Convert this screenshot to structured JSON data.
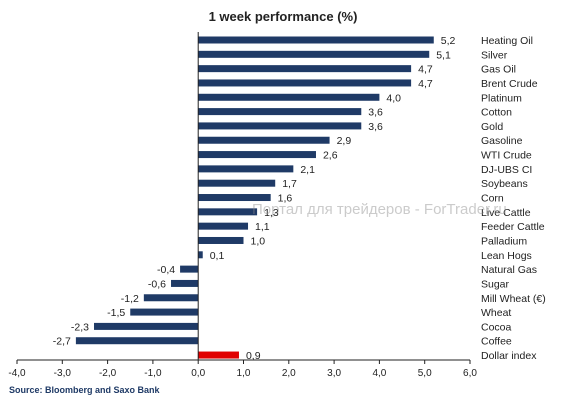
{
  "chart_data": {
    "type": "bar",
    "orientation": "horizontal",
    "title": "1 week performance (%)",
    "source": "Source: Bloomberg and Saxo Bank",
    "watermark": "Портал для трейдеров - ForTrader.ru",
    "categories": [
      "Heating Oil",
      "Silver",
      "Gas Oil",
      "Brent Crude",
      "Platinum",
      "Cotton",
      "Gold",
      "Gasoline",
      "WTI Crude",
      "DJ-UBS CI",
      "Soybeans",
      "Corn",
      "Live Cattle",
      "Feeder Cattle",
      "Palladium",
      "Lean Hogs",
      "Natural Gas",
      "Sugar",
      "Mill Wheat (€)",
      "Wheat",
      "Cocoa",
      "Coffee",
      "Dollar index"
    ],
    "values": [
      5.2,
      5.1,
      4.7,
      4.7,
      4.0,
      3.6,
      3.6,
      2.9,
      2.6,
      2.1,
      1.7,
      1.6,
      1.3,
      1.1,
      1.0,
      0.1,
      -0.4,
      -0.6,
      -1.2,
      -1.5,
      -2.3,
      -2.7,
      0.9
    ],
    "value_labels": [
      "5,2",
      "5,1",
      "4,7",
      "4,7",
      "4,0",
      "3,6",
      "3,6",
      "2,9",
      "2,6",
      "2,1",
      "1,7",
      "1,6",
      "1,3",
      "1,1",
      "1,0",
      "0,1",
      "-0,4",
      "-0,6",
      "-1,2",
      "-1,5",
      "-2,3",
      "-2,7",
      "0,9"
    ],
    "xlim": [
      -4.0,
      6.0
    ],
    "xticks": [
      -4.0,
      -3.0,
      -2.0,
      -1.0,
      0.0,
      1.0,
      2.0,
      3.0,
      4.0,
      5.0,
      6.0
    ],
    "xtick_labels": [
      "-4,0",
      "-3,0",
      "-2,0",
      "-1,0",
      "0,0",
      "1,0",
      "2,0",
      "3,0",
      "4,0",
      "5,0",
      "6,0"
    ],
    "colors": {
      "bar": "#1f3a66",
      "highlight": "#e00000",
      "axis": "#222222"
    },
    "highlight_category": "Dollar index",
    "grid": false
  }
}
